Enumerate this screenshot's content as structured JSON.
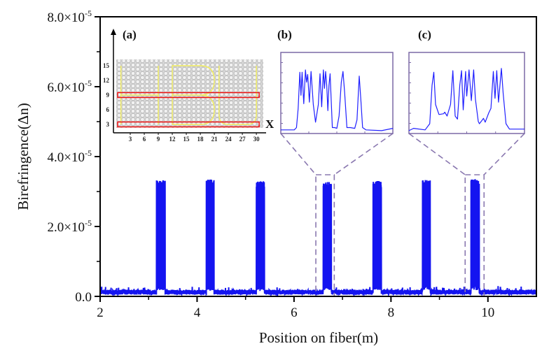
{
  "chart_data": {
    "type": "line",
    "xlabel": "Position on fiber(m)",
    "ylabel": "Birefringence(Δn)",
    "xlim": [
      2,
      11
    ],
    "ylim": [
      0,
      8e-05
    ],
    "x_ticks": [
      2,
      4,
      6,
      8,
      10
    ],
    "x_tick_labels": [
      "2",
      "4",
      "6",
      "8",
      "10"
    ],
    "y_ticks": [
      0,
      2e-05,
      4e-05,
      6e-05,
      8e-05
    ],
    "y_tick_labels": [
      {
        "base": "0.0",
        "exp": ""
      },
      {
        "base": "2.0×10",
        "exp": "-5"
      },
      {
        "base": "4.0×10",
        "exp": "-5"
      },
      {
        "base": "6.0×10",
        "exp": "-5"
      },
      {
        "base": "8.0×10",
        "exp": "-5"
      }
    ],
    "series": [
      {
        "name": "Birefringence",
        "color": "#1414f0",
        "baseline": 1.2e-06,
        "peaks": [
          {
            "start": 3.16,
            "end": 3.34,
            "height": 3.32e-05,
            "center_level": 6e-06
          },
          {
            "start": 4.19,
            "end": 4.35,
            "height": 3.35e-05,
            "center_level": 1.5e-06
          },
          {
            "start": 5.22,
            "end": 5.39,
            "height": 3.3e-05,
            "center_level": 1.5e-06
          },
          {
            "start": 6.6,
            "end": 6.77,
            "height": 3.28e-05,
            "center_level": 4e-06
          },
          {
            "start": 7.63,
            "end": 7.8,
            "height": 3.3e-05,
            "center_level": 5.5e-06
          },
          {
            "start": 8.65,
            "end": 8.81,
            "height": 3.33e-05,
            "center_level": 4.5e-06
          },
          {
            "start": 9.65,
            "end": 9.82,
            "height": 3.36e-05,
            "center_level": 6e-06
          }
        ]
      }
    ],
    "zoom_regions": [
      {
        "label": "(b)",
        "x_range": [
          6.45,
          6.83
        ],
        "y_top": 3.48e-05
      },
      {
        "label": "(c)",
        "x_range": [
          9.53,
          9.92
        ],
        "y_top": 3.48e-05
      }
    ],
    "insets": [
      {
        "label": "(b)",
        "curve": [
          [
            0,
            0.02
          ],
          [
            0.12,
            0.02
          ],
          [
            0.14,
            0.05
          ],
          [
            0.155,
            0.3
          ],
          [
            0.17,
            0.77
          ],
          [
            0.18,
            0.47
          ],
          [
            0.19,
            0.77
          ],
          [
            0.205,
            0.36
          ],
          [
            0.22,
            0.8
          ],
          [
            0.23,
            0.64
          ],
          [
            0.24,
            0.74
          ],
          [
            0.255,
            0.38
          ],
          [
            0.27,
            0.78
          ],
          [
            0.29,
            0.35
          ],
          [
            0.31,
            0.12
          ],
          [
            0.335,
            0.35
          ],
          [
            0.35,
            0.75
          ],
          [
            0.365,
            0.32
          ],
          [
            0.38,
            0.8
          ],
          [
            0.39,
            0.56
          ],
          [
            0.4,
            0.78
          ],
          [
            0.41,
            0.6
          ],
          [
            0.42,
            0.27
          ],
          [
            0.43,
            0.6
          ],
          [
            0.44,
            0.75
          ],
          [
            0.45,
            0.4
          ],
          [
            0.46,
            0.05
          ],
          [
            0.48,
            0.05
          ],
          [
            0.5,
            0.04
          ],
          [
            0.52,
            0.2
          ],
          [
            0.54,
            0.64
          ],
          [
            0.555,
            0.78
          ],
          [
            0.57,
            0.5
          ],
          [
            0.59,
            0.05
          ],
          [
            0.62,
            0.05
          ],
          [
            0.66,
            0.04
          ],
          [
            0.68,
            0.15
          ],
          [
            0.7,
            0.72
          ],
          [
            0.715,
            0.4
          ],
          [
            0.73,
            0.05
          ],
          [
            0.76,
            0.02
          ],
          [
            0.9,
            0.01
          ],
          [
            1,
            0.04
          ]
        ]
      },
      {
        "label": "(c)",
        "curve": [
          [
            0,
            0.01
          ],
          [
            0.04,
            0.04
          ],
          [
            0.14,
            0.02
          ],
          [
            0.18,
            0.1
          ],
          [
            0.2,
            0.6
          ],
          [
            0.215,
            0.77
          ],
          [
            0.23,
            0.35
          ],
          [
            0.26,
            0.22
          ],
          [
            0.3,
            0.23
          ],
          [
            0.31,
            0.25
          ],
          [
            0.33,
            0.2
          ],
          [
            0.36,
            0.35
          ],
          [
            0.38,
            0.79
          ],
          [
            0.4,
            0.2
          ],
          [
            0.42,
            0.16
          ],
          [
            0.44,
            0.6
          ],
          [
            0.455,
            0.79
          ],
          [
            0.47,
            0.28
          ],
          [
            0.49,
            0.78
          ],
          [
            0.5,
            0.46
          ],
          [
            0.52,
            0.8
          ],
          [
            0.54,
            0.4
          ],
          [
            0.56,
            0.8
          ],
          [
            0.575,
            0.42
          ],
          [
            0.6,
            0.13
          ],
          [
            0.61,
            0.1
          ],
          [
            0.63,
            0.14
          ],
          [
            0.645,
            0.17
          ],
          [
            0.66,
            0.12
          ],
          [
            0.69,
            0.24
          ],
          [
            0.71,
            0.3
          ],
          [
            0.73,
            0.78
          ],
          [
            0.745,
            0.43
          ],
          [
            0.76,
            0.79
          ],
          [
            0.775,
            0.38
          ],
          [
            0.8,
            0.82
          ],
          [
            0.815,
            0.5
          ],
          [
            0.84,
            0.1
          ],
          [
            0.87,
            0.03
          ],
          [
            1,
            0.03
          ]
        ]
      }
    ],
    "schematic": {
      "label": "(a)",
      "axis_label_x": "X",
      "x_tick_labels": [
        "3",
        "6",
        "9",
        "12",
        "15",
        "18",
        "21",
        "24",
        "27",
        "30"
      ],
      "y_tick_labels": [
        "3",
        "6",
        "9",
        "12",
        "15"
      ],
      "highlight_rows": [
        9,
        3
      ],
      "highlight_color": "#ee1111",
      "path_color": "#f2ee60"
    }
  }
}
